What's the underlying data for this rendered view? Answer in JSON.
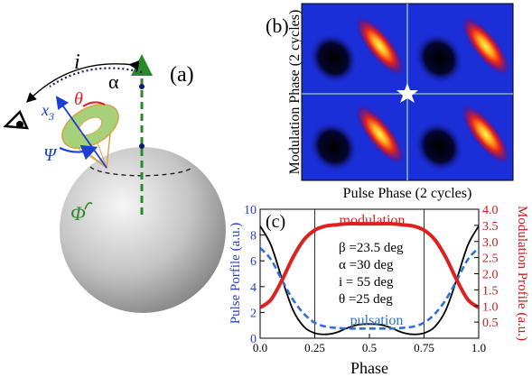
{
  "panel_a": {
    "label": "(a)",
    "symbols": {
      "inclination": "i",
      "alpha": "α",
      "theta": "θ",
      "x3_base": "x",
      "x3_sub": "3",
      "psi": "Ψ",
      "phi": "Φ"
    },
    "colors": {
      "sphere_light": "#f4f4f4",
      "sphere_dark": "#7d7d7d",
      "rotation_axis": "#2a8a2a",
      "observer_arc": "#1a1a6a",
      "cone_fill": "#9ccc6a",
      "cone_edge": "#d9a24a",
      "theta_arc": "#dd2222",
      "x3_axis": "#1a3fd6"
    }
  },
  "panel_b": {
    "label": "(b)",
    "xlabel": "Pulse Phase (2 cycles)",
    "ylabel": "Modulation Phase (2 cycles)"
  },
  "panel_c": {
    "label": "(c)",
    "xlabel": "Phase",
    "ylabel_left": "Pulse Porfile (a.u.)",
    "ylabel_right": "Modulation Profile (a.u.)",
    "curve_label_modulation": "modulation",
    "curve_label_pulsation": "pulsation",
    "params": [
      "β =23.5 deg",
      "α =30 deg",
      "i = 55 deg",
      "θ =25 deg"
    ],
    "colors": {
      "modulation": "#dd2020",
      "pulsation": "#2e6fd8",
      "black_curve": "#000000",
      "left_axis_text": "#2b3fc4",
      "right_axis_text": "#c81a1a"
    }
  },
  "chart_data": {
    "type": "line",
    "x": [
      0.0,
      0.05,
      0.1,
      0.15,
      0.2,
      0.25,
      0.3,
      0.35,
      0.4,
      0.45,
      0.5,
      0.55,
      0.6,
      0.65,
      0.7,
      0.75,
      0.8,
      0.85,
      0.9,
      0.95,
      1.0
    ],
    "xlim": [
      0,
      1
    ],
    "xticks": [
      0.0,
      0.25,
      0.5,
      0.75,
      1.0
    ],
    "xtick_labels": [
      "0.0",
      "0.25",
      "0.5",
      "0.75",
      "1.0"
    ],
    "ylim_left": [
      0,
      10
    ],
    "yticks_left": [
      0,
      2,
      4,
      6,
      8,
      10
    ],
    "ylim_right": [
      0,
      4
    ],
    "yticks_right": [
      0.5,
      1.0,
      1.5,
      2.0,
      2.5,
      3.0,
      3.5,
      4.0
    ],
    "vlines": [
      0.25,
      0.75
    ],
    "series": [
      {
        "axis": "left",
        "color": "#000000",
        "style": "solid",
        "values": [
          8.7,
          7.2,
          4.6,
          2.2,
          0.9,
          0.4,
          0.3,
          0.45,
          0.8,
          1.05,
          1.1,
          1.05,
          0.8,
          0.45,
          0.3,
          0.4,
          0.9,
          2.2,
          4.6,
          7.2,
          8.7
        ]
      },
      {
        "name": "pulsation",
        "axis": "left",
        "color": "#2e6fd8",
        "style": "dashed",
        "values": [
          7.0,
          6.1,
          4.5,
          3.0,
          1.9,
          1.2,
          0.9,
          0.8,
          0.75,
          0.75,
          0.75,
          0.75,
          0.75,
          0.8,
          0.9,
          1.2,
          1.9,
          3.0,
          4.5,
          6.1,
          7.0
        ]
      },
      {
        "name": "modulation",
        "axis": "right",
        "color": "#dd2020",
        "style": "solid",
        "values": [
          0.95,
          1.2,
          1.8,
          2.5,
          3.05,
          3.35,
          3.48,
          3.52,
          3.55,
          3.55,
          3.55,
          3.55,
          3.55,
          3.52,
          3.48,
          3.35,
          3.05,
          2.5,
          1.8,
          1.2,
          0.95
        ]
      }
    ]
  }
}
